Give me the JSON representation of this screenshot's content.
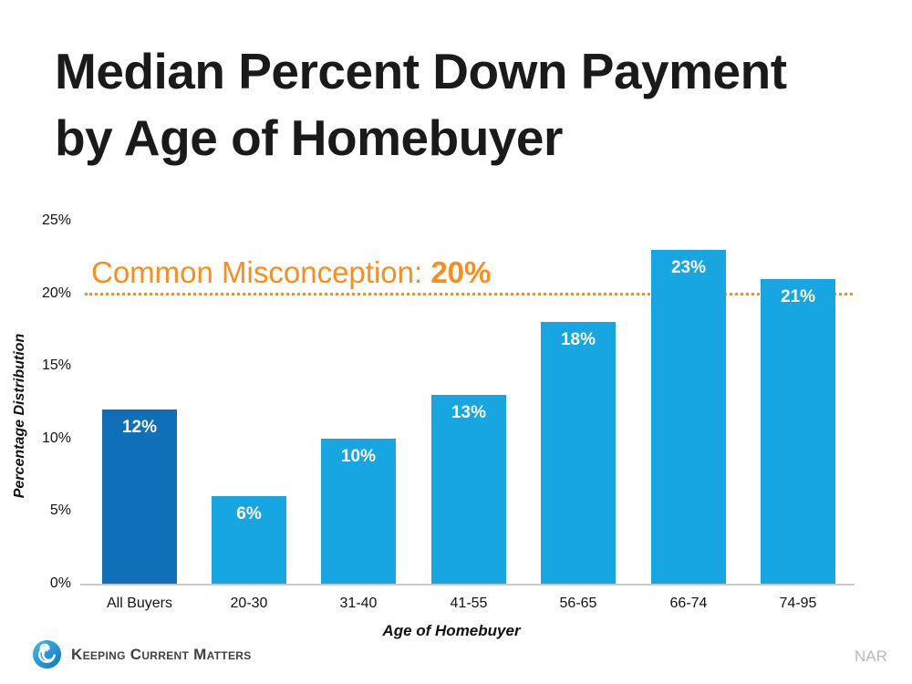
{
  "title": "Median Percent Down Payment\nby Age of Homebuyer",
  "annotation": {
    "prefix": "Common Misconception: ",
    "value": "20%"
  },
  "chart_data": {
    "type": "bar",
    "categories": [
      "All Buyers",
      "20-30",
      "31-40",
      "41-55",
      "56-65",
      "66-74",
      "74-95"
    ],
    "values": [
      12,
      6,
      10,
      13,
      18,
      23,
      21
    ],
    "value_labels": [
      "12%",
      "6%",
      "10%",
      "13%",
      "18%",
      "23%",
      "21%"
    ],
    "y_ticks": [
      "0%",
      "5%",
      "10%",
      "15%",
      "20%",
      "25%"
    ],
    "ylim": [
      0,
      25
    ],
    "ylabel": "Percentage Distribution",
    "xlabel": "Age of Homebuyer",
    "grid": "off",
    "highlight_index": 0,
    "reference_line": {
      "value": 20,
      "style": "dotted",
      "label": "Common Misconception: 20%"
    }
  },
  "colors": {
    "bar_primary": "#18A6E3",
    "bar_highlight": "#0F70B8",
    "accent_orange": "#F78E1E",
    "axis_line": "#C9C9C9",
    "title_text": "#1A1A1A"
  },
  "footer": {
    "brand": "Keeping Current Matters",
    "source": "NAR"
  }
}
